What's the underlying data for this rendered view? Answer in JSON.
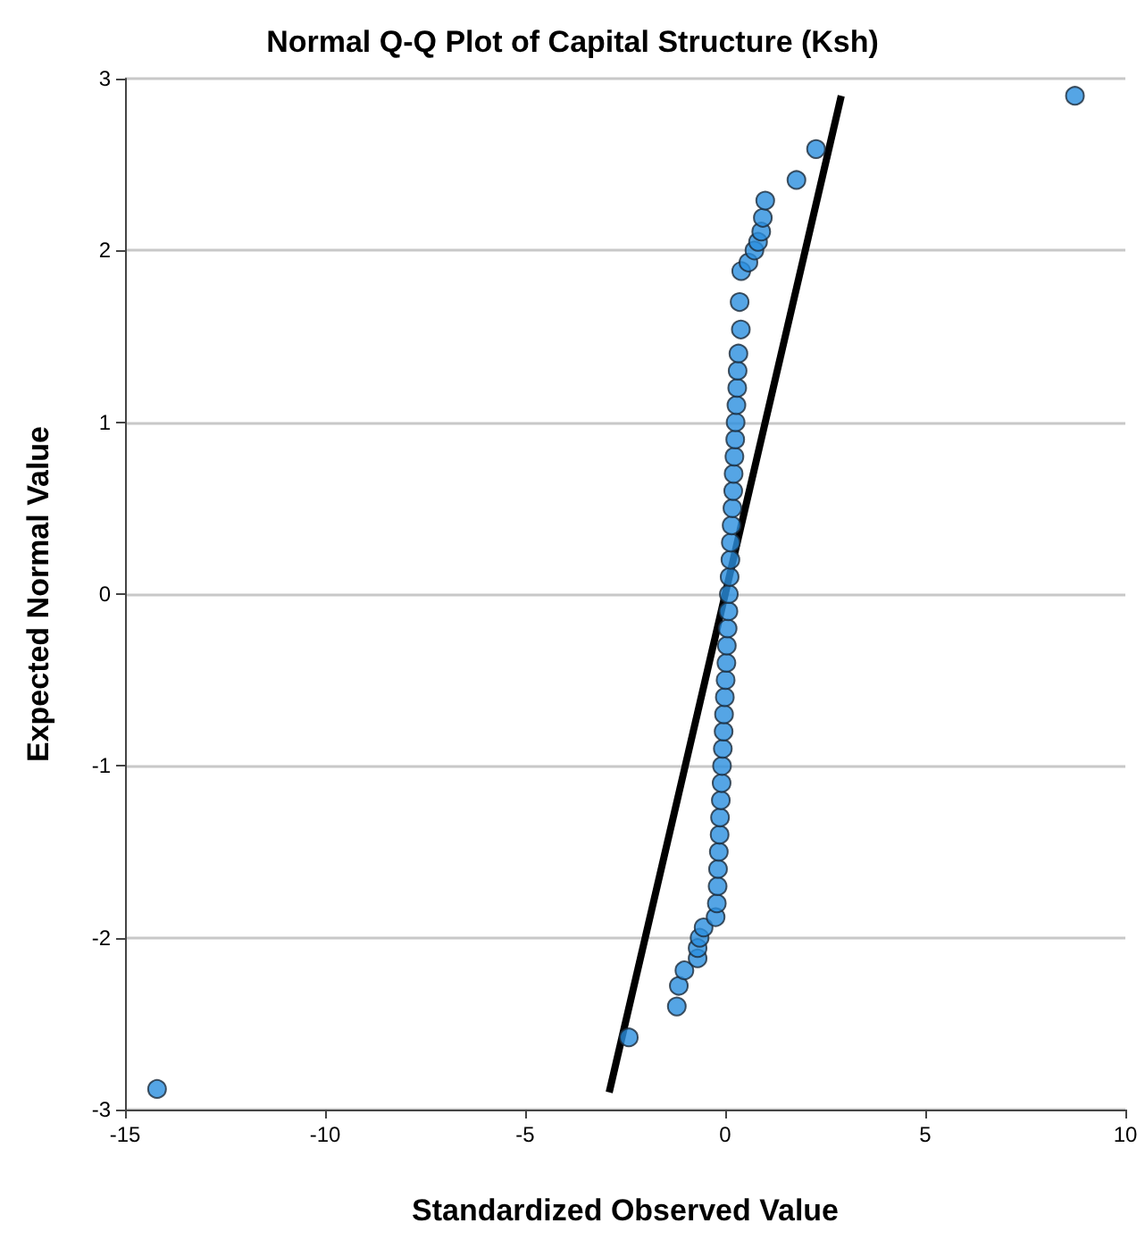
{
  "chart_data": {
    "type": "scatter",
    "title": "Normal Q-Q Plot of Capital Structure (Ksh)",
    "xlabel": "Standardized Observed Value",
    "ylabel": "Expected Normal Value",
    "xlim": [
      -15,
      10
    ],
    "xticks": [
      -15,
      -10,
      -5,
      0,
      5,
      10
    ],
    "ylim": [
      -3,
      3
    ],
    "yticks": [
      -3,
      -2,
      -1,
      0,
      1,
      2,
      3
    ],
    "grid": "y",
    "marker": "circle",
    "series": [
      {
        "color": "#2b8fde",
        "x": [
          -14.2,
          -2.41,
          -1.21,
          -1.16,
          -1.02,
          -0.69,
          -0.69,
          -0.64,
          -0.54,
          -0.24,
          -0.21,
          -0.19,
          -0.18,
          -0.16,
          -0.14,
          -0.13,
          -0.11,
          -0.09,
          -0.08,
          -0.06,
          -0.04,
          -0.03,
          -0.01,
          0.01,
          0.03,
          0.04,
          0.06,
          0.08,
          0.09,
          0.11,
          0.13,
          0.14,
          0.16,
          0.18,
          0.2,
          0.21,
          0.23,
          0.25,
          0.26,
          0.28,
          0.3,
          0.31,
          0.33,
          0.39,
          0.36,
          0.4,
          0.58,
          0.73,
          0.82,
          0.9,
          0.94,
          1.0,
          1.78,
          2.27,
          8.74
        ],
        "values": [
          -2.88,
          -2.58,
          -2.4,
          -2.28,
          -2.19,
          -2.12,
          -2.06,
          -2.0,
          -1.94,
          -1.88,
          -1.8,
          -1.7,
          -1.6,
          -1.5,
          -1.4,
          -1.3,
          -1.2,
          -1.1,
          -1.0,
          -0.9,
          -0.8,
          -0.7,
          -0.6,
          -0.5,
          -0.4,
          -0.3,
          -0.2,
          -0.1,
          0.0,
          0.1,
          0.2,
          0.3,
          0.4,
          0.5,
          0.6,
          0.7,
          0.8,
          0.9,
          1.0,
          1.1,
          1.2,
          1.3,
          1.4,
          1.54,
          1.7,
          1.88,
          1.93,
          2.0,
          2.05,
          2.11,
          2.19,
          2.29,
          2.41,
          2.59,
          2.9
        ]
      },
      {
        "type": "line",
        "marker": "none",
        "color": "#000000",
        "x": [
          -2.9,
          2.9
        ],
        "values": [
          -2.9,
          2.9
        ]
      }
    ]
  }
}
